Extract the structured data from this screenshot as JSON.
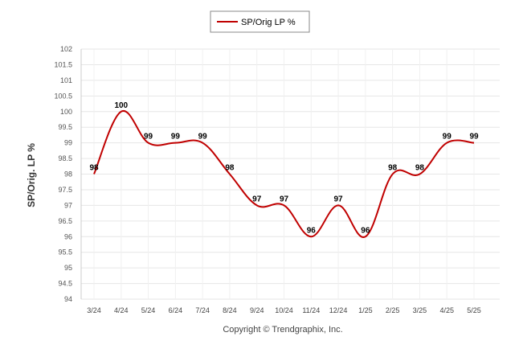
{
  "colors": {
    "series": "#c00000",
    "grid": "#e6e6e6",
    "background": "#ffffff"
  },
  "footer": {
    "copyright": "Copyright © Trendgraphix, Inc."
  },
  "chart_data": {
    "type": "line",
    "title": "",
    "xlabel": "",
    "ylabel": "SP/Orig. LP %",
    "ylim": [
      94,
      102
    ],
    "yticks": [
      94,
      94.5,
      95,
      95.5,
      96,
      96.5,
      97,
      97.5,
      98,
      98.5,
      99,
      99.5,
      100,
      100.5,
      101,
      101.5,
      102
    ],
    "grid": true,
    "legend_position": "top-center",
    "categories": [
      "3/24",
      "4/24",
      "5/24",
      "6/24",
      "7/24",
      "8/24",
      "9/24",
      "10/24",
      "11/24",
      "12/24",
      "1/25",
      "2/25",
      "3/25",
      "4/25",
      "5/25"
    ],
    "series": [
      {
        "name": "SP/Orig LP %",
        "values": [
          98,
          100,
          99,
          99,
          99,
          98,
          97,
          97,
          96,
          97,
          96,
          98,
          98,
          99,
          99
        ],
        "labels": [
          "98",
          "100",
          "99",
          "99",
          "99",
          "98",
          "97",
          "97",
          "96",
          "97",
          "96",
          "98",
          "98",
          "99",
          "99"
        ]
      }
    ]
  }
}
